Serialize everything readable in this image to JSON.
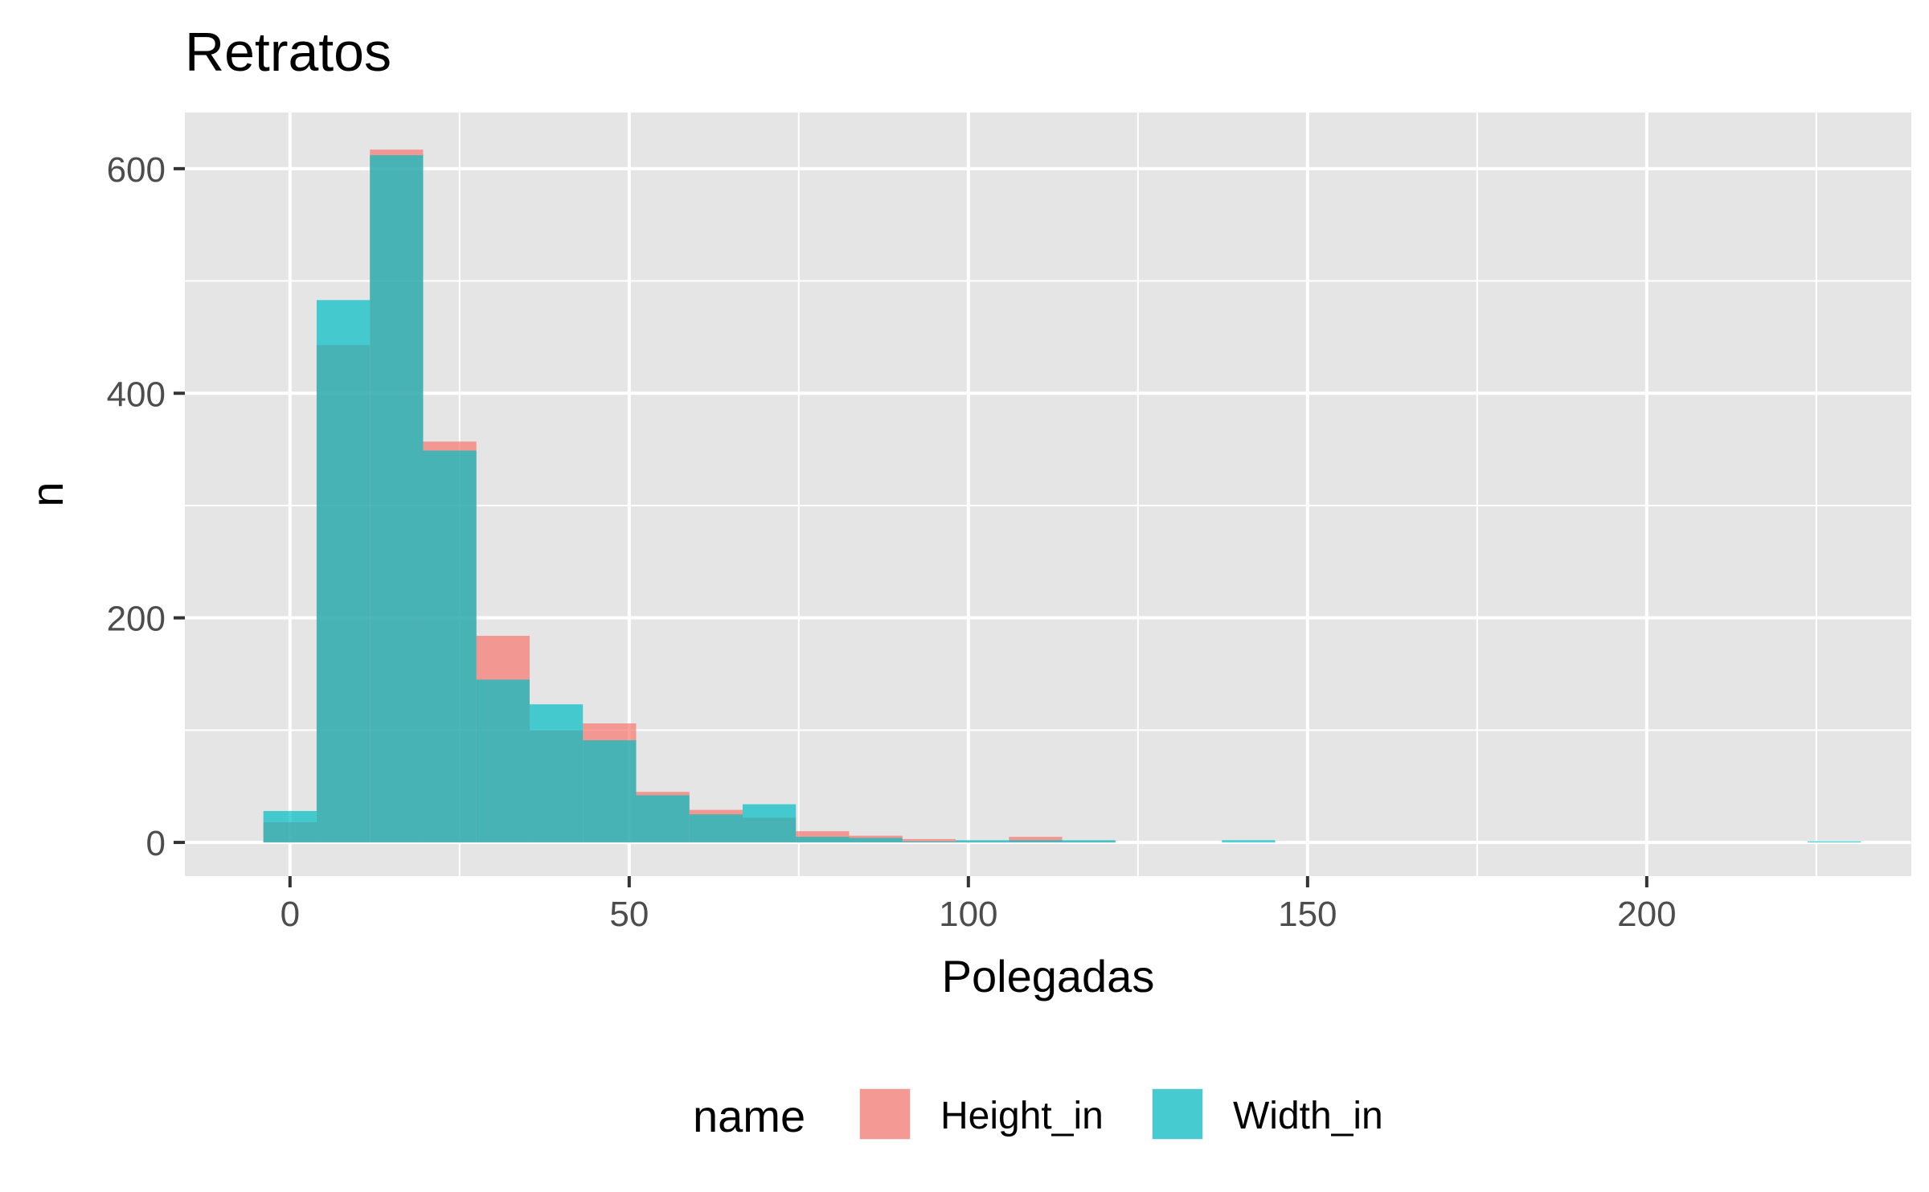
{
  "chart_data": {
    "type": "histogram",
    "title": "Retratos",
    "xlabel": "Polegadas",
    "ylabel": "n",
    "xlim": [
      -15.5,
      239
    ],
    "ylim": [
      -30,
      650
    ],
    "x_ticks": [
      0,
      50,
      100,
      150,
      200
    ],
    "y_ticks": [
      0,
      200,
      400,
      600
    ],
    "bin_width": 7.85,
    "bin_centers": [
      0,
      7.85,
      15.7,
      23.55,
      31.4,
      39.25,
      47.1,
      54.95,
      62.8,
      70.65,
      78.5,
      86.35,
      94.2,
      102.05,
      109.9,
      117.75,
      125.6,
      133.45,
      141.3,
      149.15,
      157,
      164.85,
      172.7,
      180.55,
      188.4,
      196.25,
      204.1,
      211.95,
      219.8,
      227.65
    ],
    "series": [
      {
        "name": "Height_in",
        "color": "#F8766D",
        "values": [
          18,
          443,
          617,
          357,
          184,
          100,
          106,
          45,
          29,
          22,
          10,
          6,
          3,
          1,
          5,
          1,
          0,
          0,
          0,
          0,
          0,
          0,
          0,
          0,
          0,
          0,
          0,
          0,
          0,
          0
        ]
      },
      {
        "name": "Width_in",
        "color": "#00BFC4",
        "values": [
          28,
          483,
          612,
          349,
          145,
          123,
          91,
          42,
          25,
          34,
          5,
          4,
          1,
          2,
          2,
          2,
          0,
          0,
          2,
          0,
          0,
          0,
          0,
          0,
          0,
          0,
          0,
          0,
          0,
          1
        ]
      }
    ],
    "legend": {
      "title": "name",
      "position": "bottom",
      "items": [
        "Height_in",
        "Width_in"
      ]
    },
    "grid": true,
    "panel_background": "#E5E5E5",
    "grid_color": "#FFFFFF",
    "bar_alpha": 0.7
  }
}
